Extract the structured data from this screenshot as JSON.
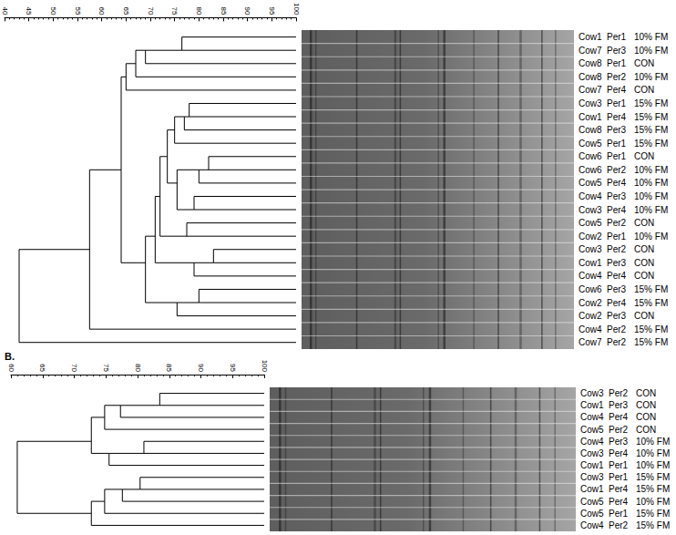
{
  "chart_data": [
    {
      "type": "dendrogram",
      "xlim": [
        40,
        100
      ],
      "xticks": [
        40,
        45,
        50,
        55,
        60,
        65,
        70,
        75,
        80,
        85,
        90,
        95,
        100
      ],
      "color": "#000000",
      "tree": {
        "similarity": 43,
        "children": [
          {
            "similarity": 57.5,
            "children": [
              {
                "similarity": 64,
                "children": [
                  {
                    "similarity": 65,
                    "children": [
                      {
                        "similarity": 67,
                        "children": [
                          {
                            "similarity": 69,
                            "children": [
                              {
                                "similarity": 76.5,
                                "children": [
                                  {
                                    "leaf": {
                                      "cow": "Cow1",
                                      "period": "Per1",
                                      "diet": "10% FM"
                                    }
                                  },
                                  {
                                    "leaf": {
                                      "cow": "Cow7",
                                      "period": "Per3",
                                      "diet": "10% FM"
                                    }
                                  }
                                ]
                              },
                              {
                                "leaf": {
                                  "cow": "Cow8",
                                  "period": "Per1",
                                  "diet": "CON"
                                }
                              }
                            ]
                          },
                          {
                            "leaf": {
                              "cow": "Cow8",
                              "period": "Per2",
                              "diet": "10% FM"
                            }
                          }
                        ]
                      },
                      {
                        "leaf": {
                          "cow": "Cow7",
                          "period": "Per4",
                          "diet": "CON"
                        }
                      }
                    ]
                  },
                  {
                    "similarity": 69,
                    "children": [
                      {
                        "similarity": 71,
                        "children": [
                          {
                            "similarity": 72,
                            "children": [
                              {
                                "similarity": 73.5,
                                "children": [
                                  {
                                    "similarity": 75,
                                    "children": [
                                      {
                                        "similarity": 77,
                                        "children": [
                                          {
                                            "similarity": 78,
                                            "children": [
                                              {
                                                "leaf": {
                                                  "cow": "Cow3",
                                                  "period": "Per1",
                                                  "diet": "15% FM"
                                                }
                                              },
                                              {
                                                "leaf": {
                                                  "cow": "Cow1",
                                                  "period": "Per4",
                                                  "diet": "15% FM"
                                                }
                                              }
                                            ]
                                          },
                                          {
                                            "leaf": {
                                              "cow": "Cow8",
                                              "period": "Per3",
                                              "diet": "15% FM"
                                            }
                                          }
                                        ]
                                      },
                                      {
                                        "leaf": {
                                          "cow": "Cow5",
                                          "period": "Per1",
                                          "diet": "15% FM"
                                        }
                                      }
                                    ]
                                  },
                                  {
                                    "similarity": 75.5,
                                    "children": [
                                      {
                                        "similarity": 80,
                                        "children": [
                                          {
                                            "similarity": 82,
                                            "children": [
                                              {
                                                "leaf": {
                                                  "cow": "Cow6",
                                                  "period": "Per1",
                                                  "diet": "CON"
                                                }
                                              },
                                              {
                                                "leaf": {
                                                  "cow": "Cow6",
                                                  "period": "Per2",
                                                  "diet": "10% FM"
                                                }
                                              }
                                            ]
                                          },
                                          {
                                            "leaf": {
                                              "cow": "Cow5",
                                              "period": "Per4",
                                              "diet": "10% FM"
                                            }
                                          }
                                        ]
                                      },
                                      {
                                        "similarity": 79,
                                        "children": [
                                          {
                                            "leaf": {
                                              "cow": "Cow4",
                                              "period": "Per3",
                                              "diet": "10% FM"
                                            }
                                          },
                                          {
                                            "leaf": {
                                              "cow": "Cow3",
                                              "period": "Per4",
                                              "diet": "10% FM"
                                            }
                                          }
                                        ]
                                      }
                                    ]
                                  }
                                ]
                              },
                              {
                                "similarity": 77.5,
                                "children": [
                                  {
                                    "leaf": {
                                      "cow": "Cow5",
                                      "period": "Per2",
                                      "diet": "CON"
                                    }
                                  },
                                  {
                                    "leaf": {
                                      "cow": "Cow2",
                                      "period": "Per1",
                                      "diet": "10% FM"
                                    }
                                  }
                                ]
                              }
                            ]
                          },
                          {
                            "similarity": 79,
                            "children": [
                              {
                                "similarity": 83,
                                "children": [
                                  {
                                    "leaf": {
                                      "cow": "Cow3",
                                      "period": "Per2",
                                      "diet": "CON"
                                    }
                                  },
                                  {
                                    "leaf": {
                                      "cow": "Cow1",
                                      "period": "Per3",
                                      "diet": "CON"
                                    }
                                  }
                                ]
                              },
                              {
                                "leaf": {
                                  "cow": "Cow4",
                                  "period": "Per4",
                                  "diet": "CON"
                                }
                              }
                            ]
                          }
                        ]
                      },
                      {
                        "similarity": 75.5,
                        "children": [
                          {
                            "similarity": 80,
                            "children": [
                              {
                                "leaf": {
                                  "cow": "Cow6",
                                  "period": "Per3",
                                  "diet": "15% FM"
                                }
                              },
                              {
                                "leaf": {
                                  "cow": "Cow2",
                                  "period": "Per4",
                                  "diet": "15% FM"
                                }
                              }
                            ]
                          },
                          {
                            "leaf": {
                              "cow": "Cow2",
                              "period": "Per3",
                              "diet": "CON"
                            }
                          }
                        ]
                      }
                    ]
                  }
                ]
              },
              {
                "leaf": {
                  "cow": "Cow4",
                  "period": "Per2",
                  "diet": "15% FM"
                }
              }
            ]
          },
          {
            "leaf": {
              "cow": "Cow7",
              "period": "Per2",
              "diet": "15% FM"
            }
          }
        ]
      }
    },
    {
      "type": "dendrogram",
      "title": "B.",
      "xlim": [
        60,
        100
      ],
      "xticks": [
        60,
        65,
        70,
        75,
        80,
        85,
        90,
        95,
        100
      ],
      "color": "#000000",
      "tree": {
        "similarity": 61,
        "children": [
          {
            "similarity": 72.7,
            "children": [
              {
                "similarity": 74.8,
                "children": [
                  {
                    "similarity": 77.3,
                    "children": [
                      {
                        "similarity": 83.5,
                        "children": [
                          {
                            "leaf": {
                              "cow": "Cow3",
                              "period": "Per2",
                              "diet": "CON"
                            }
                          },
                          {
                            "leaf": {
                              "cow": "Cow1",
                              "period": "Per3",
                              "diet": "CON"
                            }
                          }
                        ]
                      },
                      {
                        "leaf": {
                          "cow": "Cow4",
                          "period": "Per4",
                          "diet": "CON"
                        }
                      }
                    ]
                  },
                  {
                    "leaf": {
                      "cow": "Cow5",
                      "period": "Per2",
                      "diet": "CON"
                    }
                  }
                ]
              },
              {
                "similarity": 75.5,
                "children": [
                  {
                    "similarity": 81,
                    "children": [
                      {
                        "leaf": {
                          "cow": "Cow4",
                          "period": "Per3",
                          "diet": "10% FM"
                        }
                      },
                      {
                        "leaf": {
                          "cow": "Cow3",
                          "period": "Per4",
                          "diet": "10% FM"
                        }
                      }
                    ]
                  },
                  {
                    "leaf": {
                      "cow": "Cow1",
                      "period": "Per1",
                      "diet": "10% FM"
                    }
                  }
                ]
              }
            ]
          },
          {
            "similarity": 72.7,
            "children": [
              {
                "similarity": 74.8,
                "children": [
                  {
                    "similarity": 77.6,
                    "children": [
                      {
                        "similarity": 80.4,
                        "children": [
                          {
                            "leaf": {
                              "cow": "Cow3",
                              "period": "Per1",
                              "diet": "15% FM"
                            }
                          },
                          {
                            "leaf": {
                              "cow": "Cow1",
                              "period": "Per4",
                              "diet": "15% FM"
                            }
                          }
                        ]
                      },
                      {
                        "leaf": {
                          "cow": "Cow5",
                          "period": "Per4",
                          "diet": "10% FM"
                        }
                      }
                    ]
                  },
                  {
                    "leaf": {
                      "cow": "Cow5",
                      "period": "Per1",
                      "diet": "15% FM"
                    }
                  }
                ]
              },
              {
                "leaf": {
                  "cow": "Cow4",
                  "period": "Per2",
                  "diet": "15% FM"
                }
              }
            ]
          }
        ]
      }
    }
  ]
}
